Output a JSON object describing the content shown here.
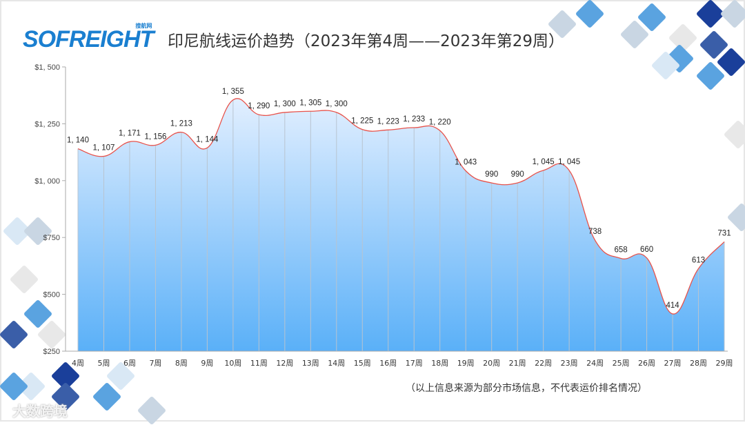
{
  "logo": {
    "text": "SOFREIGHT",
    "sub": "搜航网"
  },
  "watermark": "大数跨境",
  "note": "（以上信息来源为部分市场信息，不代表运价排名情况）",
  "chart_data": {
    "type": "area",
    "title": "印尼航线运价趋势（2023年第4周——2023年第29周）",
    "categories": [
      "4周",
      "5周",
      "6周",
      "7周",
      "8周",
      "9周",
      "10周",
      "11周",
      "12周",
      "13周",
      "14周",
      "15周",
      "16周",
      "17周",
      "18周",
      "19周",
      "20周",
      "21周",
      "22周",
      "23周",
      "24周",
      "25周",
      "26周",
      "27周",
      "28周",
      "29周"
    ],
    "values": [
      1140,
      1107,
      1171,
      1156,
      1213,
      1144,
      1355,
      1290,
      1300,
      1305,
      1300,
      1225,
      1223,
      1233,
      1220,
      1043,
      990,
      990,
      1045,
      1045,
      738,
      658,
      660,
      414,
      613,
      731
    ],
    "data_labels": [
      "1, 140",
      "1, 107",
      "1, 171",
      "1, 156",
      "1, 213",
      "1, 144",
      "1, 355",
      "1, 290",
      "1, 300",
      "1, 305",
      "1, 300",
      "1, 225",
      "1, 223",
      "1, 233",
      "1, 220",
      "1, 043",
      "990",
      "990",
      "1, 045",
      "1, 045",
      "738",
      "658",
      "660",
      "414",
      "613",
      "731"
    ],
    "yticks": [
      "$250",
      "$500",
      "$750",
      "$1, 000",
      "$1, 250",
      "$1, 500"
    ],
    "ytick_values": [
      250,
      500,
      750,
      1000,
      1250,
      1500
    ],
    "ylim": [
      250,
      1500
    ],
    "line_color": "#e8524a",
    "fill_colors": [
      "#e2efff",
      "#5ab0f8"
    ],
    "grid": "vertical lines"
  }
}
